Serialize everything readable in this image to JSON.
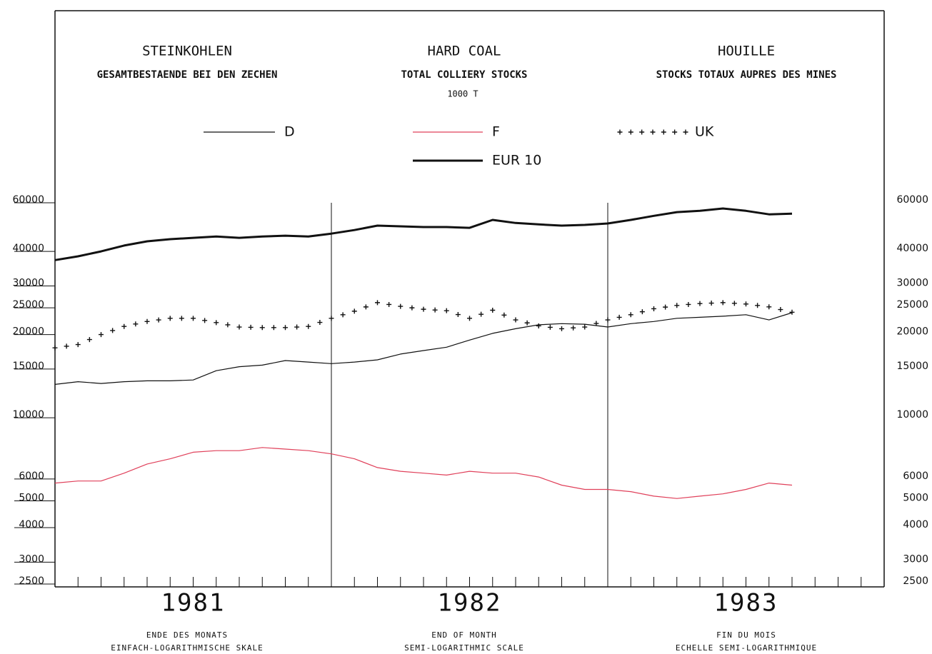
{
  "chart_data": {
    "type": "line",
    "titles": [
      "STEINKOHLEN",
      "HARD COAL",
      "HOUILLE"
    ],
    "subtitles": [
      "GESAMTBESTAENDE BEI DEN ZECHEN",
      "TOTAL COLLIERY STOCKS",
      "STOCKS TOTAUX AUPRES DES MINES"
    ],
    "unit": "1000 T",
    "periods": [
      "1981",
      "1982",
      "1983"
    ],
    "x_label_lines": [
      [
        "ENDE DES MONATS",
        "EINFACH-LOGARITHMISCHE SKALE"
      ],
      [
        "END OF MONTH",
        "SEMI-LOGARITHMIC SCALE"
      ],
      [
        "FIN DU MOIS",
        "ECHELLE SEMI-LOGARITHMIQUE"
      ]
    ],
    "log_y": true,
    "ylim": [
      2500,
      60000
    ],
    "yticks": [
      2500,
      3000,
      4000,
      5000,
      6000,
      10000,
      15000,
      20000,
      25000,
      30000,
      40000,
      60000
    ],
    "series": [
      {
        "name": "D",
        "color": "#111111",
        "style": "solid",
        "values": [
          13200,
          13500,
          13300,
          13500,
          13600,
          13600,
          13700,
          14800,
          15300,
          15500,
          16100,
          15900,
          15700,
          15900,
          16200,
          17000,
          17500,
          18000,
          19100,
          20200,
          21000,
          21700,
          21900,
          21800,
          21300,
          21900,
          22300,
          22900,
          23100,
          23300,
          23600,
          22600,
          24000
        ]
      },
      {
        "name": "F",
        "color": "#e0405a",
        "style": "solid",
        "values": [
          5800,
          5900,
          5900,
          6300,
          6800,
          7100,
          7500,
          7600,
          7600,
          7800,
          7700,
          7600,
          7400,
          7100,
          6600,
          6400,
          6300,
          6200,
          6400,
          6300,
          6300,
          6100,
          5700,
          5500,
          5500,
          5400,
          5200,
          5100,
          5200,
          5300,
          5500,
          5800,
          5700
        ]
      },
      {
        "name": "UK",
        "color": "#111111",
        "style": "crosses",
        "values": [
          17900,
          18400,
          20000,
          21400,
          22300,
          22900,
          22900,
          22100,
          21300,
          21200,
          21200,
          21400,
          22900,
          24300,
          26100,
          25300,
          24700,
          24400,
          22900,
          24500,
          22600,
          21500,
          21000,
          21300,
          22600,
          23600,
          24800,
          25500,
          25900,
          26100,
          25800,
          25200,
          24100
        ]
      },
      {
        "name": "EUR 10",
        "color": "#111111",
        "style": "thick",
        "values": [
          37200,
          38400,
          40000,
          42000,
          43500,
          44300,
          44800,
          45300,
          44800,
          45300,
          45600,
          45300,
          46400,
          47800,
          49600,
          49300,
          49000,
          49000,
          48700,
          52000,
          50700,
          50100,
          49600,
          49900,
          50500,
          52000,
          53800,
          55500,
          56100,
          57200,
          56100,
          54500,
          54800
        ]
      }
    ]
  }
}
